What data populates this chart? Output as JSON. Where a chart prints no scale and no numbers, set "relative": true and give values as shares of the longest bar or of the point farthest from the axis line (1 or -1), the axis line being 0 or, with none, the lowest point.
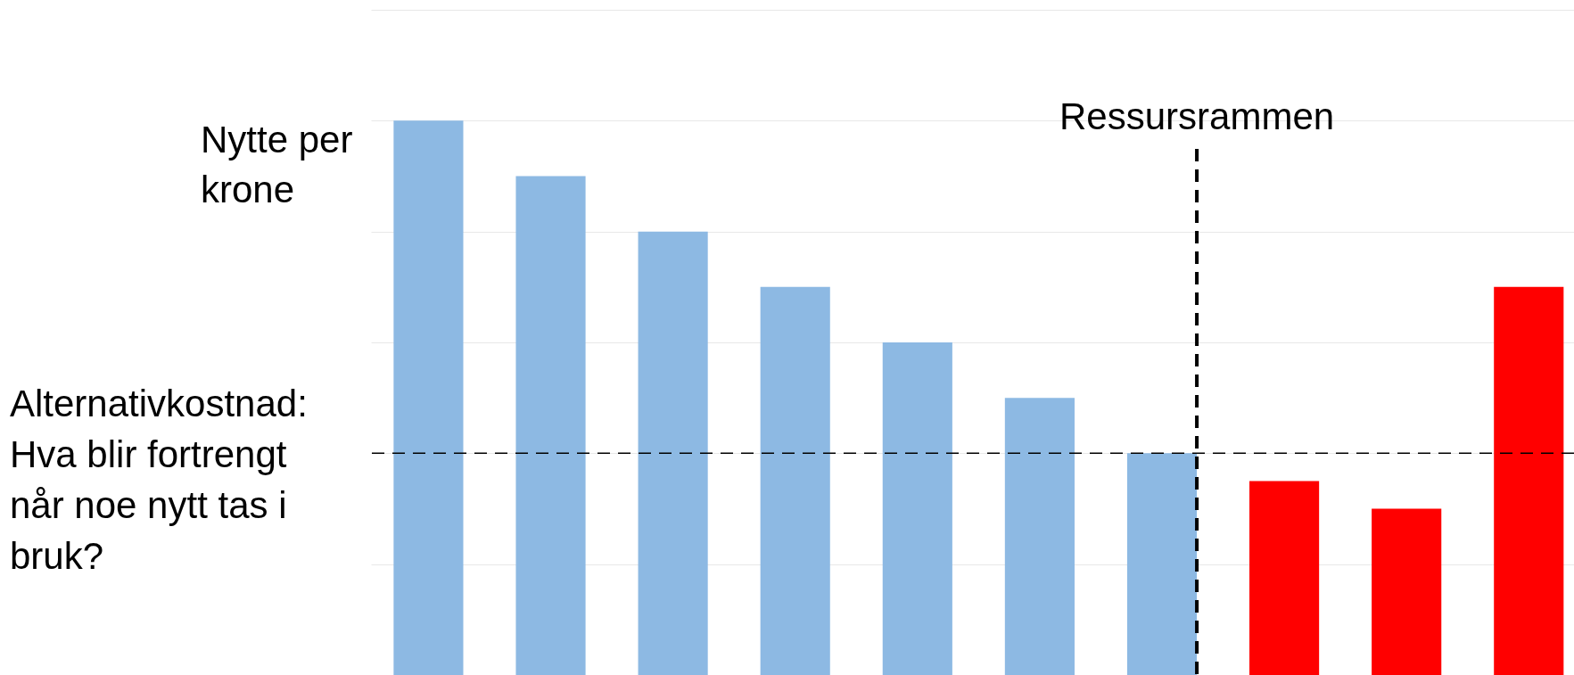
{
  "chart_data": {
    "type": "bar",
    "relative": true,
    "ylabel": "Nytte per krone",
    "categories": [
      null,
      null,
      null,
      null,
      null,
      null,
      null,
      null,
      null,
      null
    ],
    "values": [
      1,
      0.9,
      0.8,
      0.7,
      0.6,
      0.5,
      0.4,
      0.35,
      0.3,
      0.7
    ],
    "colors": [
      "#8db9e3",
      "#8db9e3",
      "#8db9e3",
      "#8db9e3",
      "#8db9e3",
      "#8db9e3",
      "#8db9e3",
      "#ff0000",
      "#ff0000",
      "#ff0000"
    ],
    "grid": "y",
    "annotations": [
      "Ressursrammen"
    ],
    "ref_lines": [
      {
        "axis": "y",
        "value": 0.4,
        "label": "Alternativkostnad: Hva blir fortrengt når noe nytt tas i bruk?",
        "color": "#000000",
        "line_style": "dashed"
      }
    ]
  }
}
